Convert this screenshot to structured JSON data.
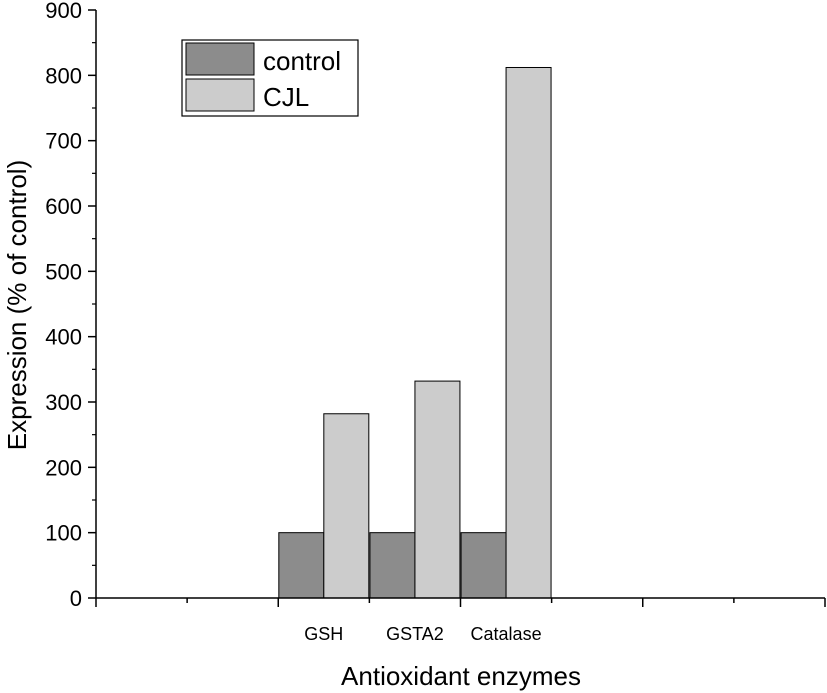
{
  "chart_data": {
    "type": "bar",
    "categories": [
      "GSH",
      "GSTA2",
      "Catalase"
    ],
    "series": [
      {
        "name": "control",
        "values": [
          100,
          100,
          100
        ],
        "color": "#8c8c8c"
      },
      {
        "name": "CJL",
        "values": [
          282,
          332,
          812
        ],
        "color": "#cccccc"
      }
    ],
    "xlabel": "Antioxidant enzymes",
    "ylabel": "Expression (% of control)",
    "ylim": [
      0,
      900
    ],
    "yticks": [
      0,
      100,
      200,
      300,
      400,
      500,
      600,
      700,
      800,
      900
    ],
    "grid": false,
    "legend_position": "top-left"
  }
}
